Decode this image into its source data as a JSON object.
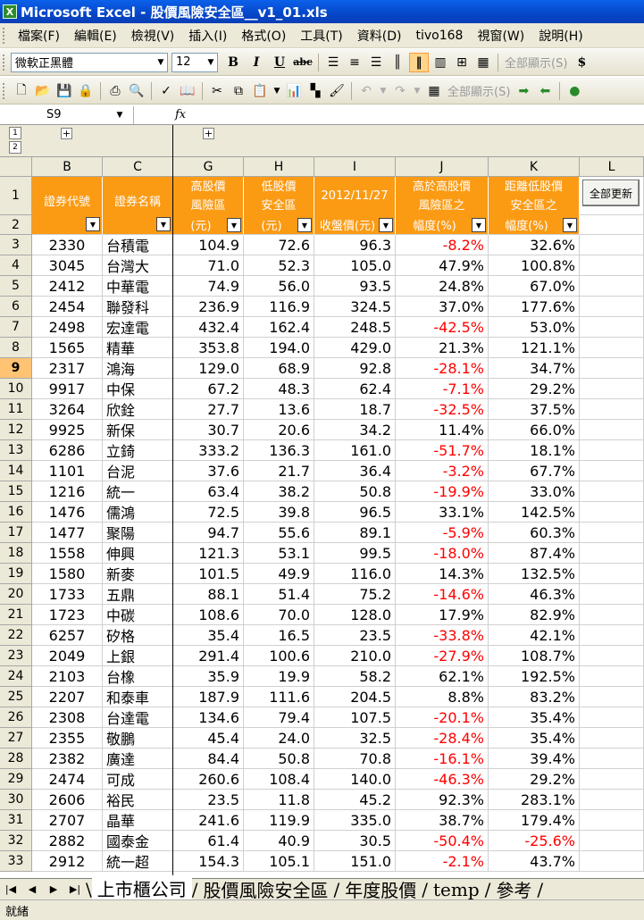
{
  "window": {
    "title": "Microsoft Excel - 股價風險安全區__v1_01.xls",
    "app_icon_letter": "X"
  },
  "menu": [
    "檔案(F)",
    "編輯(E)",
    "檢視(V)",
    "插入(I)",
    "格式(O)",
    "工具(T)",
    "資料(D)",
    "tivo168",
    "視窗(W)",
    "說明(H)"
  ],
  "toolbar": {
    "font_name": "微軟正黑體",
    "font_size": "12",
    "bold": "B",
    "italic": "I",
    "underline": "U",
    "strike": "abc",
    "show_all_1": "全部顯示(S)",
    "currency": "$",
    "show_all_2": "全部顯示(S)"
  },
  "formula_bar": {
    "cell_ref": "S9",
    "fx": "fx",
    "value": ""
  },
  "outline": {
    "levels": [
      "1",
      "2"
    ],
    "expand": "+"
  },
  "columns": [
    "B",
    "C",
    "G",
    "H",
    "I",
    "J",
    "K",
    "L"
  ],
  "header": {
    "code": "證券代號",
    "name": "證券名稱",
    "high_top": "高股價\n風險區",
    "high_bottom": "(元)",
    "low_top": "低股價\n安全區",
    "low_bottom": "(元)",
    "close_top": "2012/11/27",
    "close_bottom": "收盤價(元)",
    "above_top": "高於高股價\n風險區之",
    "above_bottom": "幅度(%)",
    "dist_top": "距離低股價\n安全區之",
    "dist_bottom": "幅度(%)",
    "update_button": "全部更新"
  },
  "header_rows": [
    "1",
    "2"
  ],
  "active_row": "9",
  "rows": [
    {
      "r": "3",
      "code": "2330",
      "name": "台積電",
      "high": "104.9",
      "low": "72.6",
      "close": "96.3",
      "above": "-8.2%",
      "dist": "32.6%"
    },
    {
      "r": "4",
      "code": "3045",
      "name": "台灣大",
      "high": "71.0",
      "low": "52.3",
      "close": "105.0",
      "above": "47.9%",
      "dist": "100.8%"
    },
    {
      "r": "5",
      "code": "2412",
      "name": "中華電",
      "high": "74.9",
      "low": "56.0",
      "close": "93.5",
      "above": "24.8%",
      "dist": "67.0%"
    },
    {
      "r": "6",
      "code": "2454",
      "name": "聯發科",
      "high": "236.9",
      "low": "116.9",
      "close": "324.5",
      "above": "37.0%",
      "dist": "177.6%"
    },
    {
      "r": "7",
      "code": "2498",
      "name": "宏達電",
      "high": "432.4",
      "low": "162.4",
      "close": "248.5",
      "above": "-42.5%",
      "dist": "53.0%"
    },
    {
      "r": "8",
      "code": "1565",
      "name": "精華",
      "high": "353.8",
      "low": "194.0",
      "close": "429.0",
      "above": "21.3%",
      "dist": "121.1%"
    },
    {
      "r": "9",
      "code": "2317",
      "name": "鴻海",
      "high": "129.0",
      "low": "68.9",
      "close": "92.8",
      "above": "-28.1%",
      "dist": "34.7%"
    },
    {
      "r": "10",
      "code": "9917",
      "name": "中保",
      "high": "67.2",
      "low": "48.3",
      "close": "62.4",
      "above": "-7.1%",
      "dist": "29.2%"
    },
    {
      "r": "11",
      "code": "3264",
      "name": "欣銓",
      "high": "27.7",
      "low": "13.6",
      "close": "18.7",
      "above": "-32.5%",
      "dist": "37.5%"
    },
    {
      "r": "12",
      "code": "9925",
      "name": "新保",
      "high": "30.7",
      "low": "20.6",
      "close": "34.2",
      "above": "11.4%",
      "dist": "66.0%"
    },
    {
      "r": "13",
      "code": "6286",
      "name": "立錡",
      "high": "333.2",
      "low": "136.3",
      "close": "161.0",
      "above": "-51.7%",
      "dist": "18.1%"
    },
    {
      "r": "14",
      "code": "1101",
      "name": "台泥",
      "high": "37.6",
      "low": "21.7",
      "close": "36.4",
      "above": "-3.2%",
      "dist": "67.7%"
    },
    {
      "r": "15",
      "code": "1216",
      "name": "統一",
      "high": "63.4",
      "low": "38.2",
      "close": "50.8",
      "above": "-19.9%",
      "dist": "33.0%"
    },
    {
      "r": "16",
      "code": "1476",
      "name": "儒鴻",
      "high": "72.5",
      "low": "39.8",
      "close": "96.5",
      "above": "33.1%",
      "dist": "142.5%"
    },
    {
      "r": "17",
      "code": "1477",
      "name": "聚陽",
      "high": "94.7",
      "low": "55.6",
      "close": "89.1",
      "above": "-5.9%",
      "dist": "60.3%"
    },
    {
      "r": "18",
      "code": "1558",
      "name": "伸興",
      "high": "121.3",
      "low": "53.1",
      "close": "99.5",
      "above": "-18.0%",
      "dist": "87.4%"
    },
    {
      "r": "19",
      "code": "1580",
      "name": "新麥",
      "high": "101.5",
      "low": "49.9",
      "close": "116.0",
      "above": "14.3%",
      "dist": "132.5%"
    },
    {
      "r": "20",
      "code": "1733",
      "name": "五鼎",
      "high": "88.1",
      "low": "51.4",
      "close": "75.2",
      "above": "-14.6%",
      "dist": "46.3%"
    },
    {
      "r": "21",
      "code": "1723",
      "name": "中碳",
      "high": "108.6",
      "low": "70.0",
      "close": "128.0",
      "above": "17.9%",
      "dist": "82.9%"
    },
    {
      "r": "22",
      "code": "6257",
      "name": "矽格",
      "high": "35.4",
      "low": "16.5",
      "close": "23.5",
      "above": "-33.8%",
      "dist": "42.1%"
    },
    {
      "r": "23",
      "code": "2049",
      "name": "上銀",
      "high": "291.4",
      "low": "100.6",
      "close": "210.0",
      "above": "-27.9%",
      "dist": "108.7%"
    },
    {
      "r": "24",
      "code": "2103",
      "name": "台橡",
      "high": "35.9",
      "low": "19.9",
      "close": "58.2",
      "above": "62.1%",
      "dist": "192.5%"
    },
    {
      "r": "25",
      "code": "2207",
      "name": "和泰車",
      "high": "187.9",
      "low": "111.6",
      "close": "204.5",
      "above": "8.8%",
      "dist": "83.2%"
    },
    {
      "r": "26",
      "code": "2308",
      "name": "台達電",
      "high": "134.6",
      "low": "79.4",
      "close": "107.5",
      "above": "-20.1%",
      "dist": "35.4%"
    },
    {
      "r": "27",
      "code": "2355",
      "name": "敬鵬",
      "high": "45.4",
      "low": "24.0",
      "close": "32.5",
      "above": "-28.4%",
      "dist": "35.4%"
    },
    {
      "r": "28",
      "code": "2382",
      "name": "廣達",
      "high": "84.4",
      "low": "50.8",
      "close": "70.8",
      "above": "-16.1%",
      "dist": "39.4%"
    },
    {
      "r": "29",
      "code": "2474",
      "name": "可成",
      "high": "260.6",
      "low": "108.4",
      "close": "140.0",
      "above": "-46.3%",
      "dist": "29.2%"
    },
    {
      "r": "30",
      "code": "2606",
      "name": "裕民",
      "high": "23.5",
      "low": "11.8",
      "close": "45.2",
      "above": "92.3%",
      "dist": "283.1%"
    },
    {
      "r": "31",
      "code": "2707",
      "name": "晶華",
      "high": "241.6",
      "low": "119.9",
      "close": "335.0",
      "above": "38.7%",
      "dist": "179.4%"
    },
    {
      "r": "32",
      "code": "2882",
      "name": "國泰金",
      "high": "61.4",
      "low": "40.9",
      "close": "30.5",
      "above": "-50.4%",
      "dist": "-25.6%"
    },
    {
      "r": "33",
      "code": "2912",
      "name": "統一超",
      "high": "154.3",
      "low": "105.1",
      "close": "151.0",
      "above": "-2.1%",
      "dist": "43.7%"
    }
  ],
  "sheet_tabs": [
    "上市櫃公司",
    "股價風險安全區",
    "年度股價",
    "temp",
    "參考"
  ],
  "active_tab": "上市櫃公司",
  "status": "就緒",
  "colors": {
    "header_bg": "#fb9b14",
    "negative": "#ff0000",
    "title_bar": "#0546c8"
  }
}
